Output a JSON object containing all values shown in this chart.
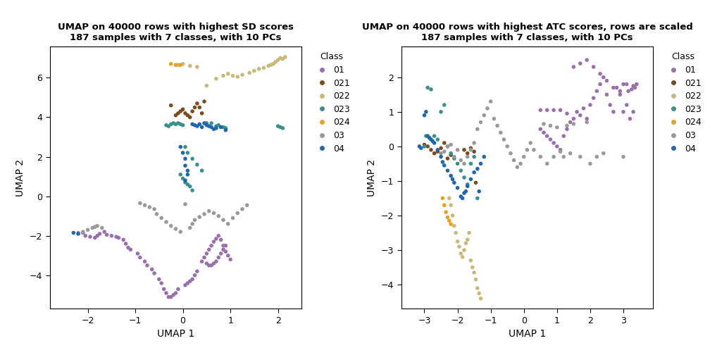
{
  "plot1": {
    "title1": "UMAP on 40000 rows with highest SD scores",
    "title2": "187 samples with 7 classes, with 10 PCs",
    "xlabel": "UMAP 1",
    "ylabel": "UMAP 2",
    "xlim": [
      -2.8,
      2.5
    ],
    "ylim": [
      -5.7,
      7.6
    ],
    "xticks": [
      -2,
      -1,
      0,
      1,
      2
    ],
    "yticks": [
      -4,
      -2,
      0,
      2,
      4,
      6
    ]
  },
  "plot2": {
    "title1": "UMAP on 40000 rows with highest ATC scores, rows are scaled",
    "title2": "187 samples with 7 classes, with 10 PCs",
    "xlabel": "UMAP 1",
    "ylabel": "UMAP 2",
    "xlim": [
      -3.7,
      3.9
    ],
    "ylim": [
      -4.7,
      2.9
    ],
    "xticks": [
      -3,
      -2,
      -1,
      0,
      1,
      2,
      3
    ],
    "yticks": [
      -4,
      -3,
      -2,
      -1,
      0,
      1,
      2
    ]
  },
  "class_order": [
    "01",
    "021",
    "022",
    "023",
    "024",
    "03",
    "04"
  ],
  "colors": {
    "01": "#9970AB",
    "021": "#7B4B1E",
    "022": "#C8B97A",
    "023": "#3B8F8C",
    "024": "#E8A020",
    "03": "#999999",
    "04": "#2166AC"
  },
  "bg_color": "#FFFFFF",
  "marker_size": 16
}
